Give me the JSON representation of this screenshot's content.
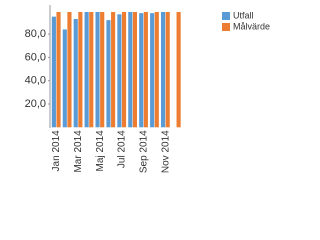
{
  "chart_data": {
    "type": "bar",
    "categories": [
      "Jan 2014",
      null,
      "Mar 2014",
      null,
      "Maj 2014",
      null,
      "Jul 2014",
      null,
      "Sep 2014",
      null,
      "Nov 2014",
      null
    ],
    "series": [
      {
        "name": "Utfall",
        "color": "#5b9bd5",
        "values": [
          95,
          84,
          93,
          99,
          99,
          92,
          97,
          99,
          98,
          98,
          99,
          null
        ]
      },
      {
        "name": "Målvärde",
        "color": "#ed7d31",
        "values": [
          99,
          99,
          99,
          99,
          99,
          99,
          99,
          99,
          99,
          99,
          99,
          99
        ]
      }
    ],
    "ylim": [
      0,
      105
    ],
    "yticks": [
      {
        "value": 20,
        "label": "20,0"
      },
      {
        "value": 40,
        "label": "40,0"
      },
      {
        "value": 60,
        "label": "60,0"
      },
      {
        "value": 80,
        "label": "80,0"
      }
    ],
    "grid": false
  }
}
